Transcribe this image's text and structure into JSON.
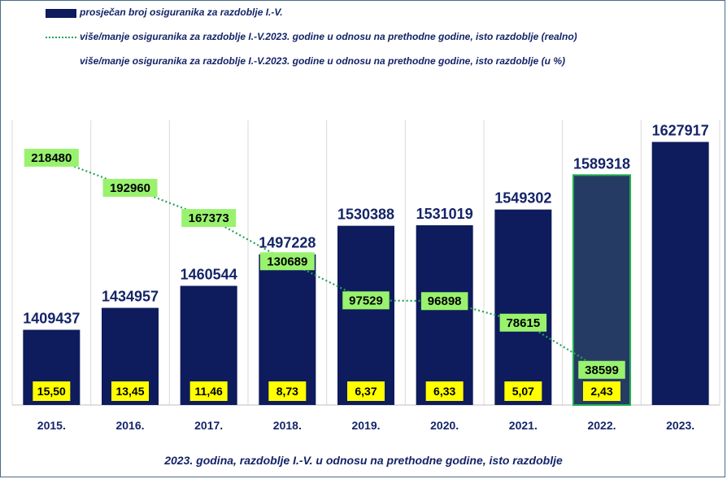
{
  "legend": {
    "bars_label": "prosječan broj osiguranika za razdoblje I.-V.",
    "line_label": "više/manje osiguranika za razdoblje I.-V.2023. godine u odnosu na prethodne godine, isto razdoblje (realno)",
    "percent_label": "više/manje osiguranika za razdoblje I.-V.2023. godine u odnosu na prethodne godine, isto razdoblje (u %)"
  },
  "caption": "2023. godina, razdoblje I.-V. u odnosu na prethodne godine, isto razdoblje",
  "colors": {
    "bar": "#0e1b5c",
    "bar_highlight": "#253b63",
    "highlight_border": "#1fae4e",
    "line": "#23a35a",
    "line_label_bg": "#99f26e",
    "percent_label_bg": "#ffff00",
    "text": "#142468"
  },
  "chart_data": {
    "type": "bar",
    "categories": [
      "2015.",
      "2016.",
      "2017.",
      "2018.",
      "2019.",
      "2020.",
      "2021.",
      "2022.",
      "2023."
    ],
    "series": [
      {
        "name": "prosječan broj osiguranika za razdoblje I.-V.",
        "type": "bar",
        "values": [
          1409437,
          1434957,
          1460544,
          1497228,
          1530388,
          1531019,
          1549302,
          1589318,
          1627917
        ],
        "labels": [
          "1409437",
          "1434957",
          "1460544",
          "1497228",
          "1530388",
          "1531019",
          "1549302",
          "1589318",
          "1627917"
        ]
      },
      {
        "name": "više/manje osiguranika za razdoblje I.-V.2023. godine u odnosu na prethodne godine, isto razdoblje (realno)",
        "type": "line",
        "style": "dotted",
        "values": [
          218480,
          192960,
          167373,
          130689,
          97529,
          96898,
          78615,
          38599,
          null
        ],
        "labels": [
          "218480",
          "192960",
          "167373",
          "130689",
          "97529",
          "96898",
          "78615",
          "38599",
          ""
        ]
      },
      {
        "name": "više/manje osiguranika za razdoblje I.-V.2023. godine u odnosu na prethodne godine, isto razdoblje (u %)",
        "type": "label",
        "values": [
          15.5,
          13.45,
          11.46,
          8.73,
          6.37,
          6.33,
          5.07,
          2.43,
          null
        ],
        "labels": [
          "15,50",
          "13,45",
          "11,46",
          "8,73",
          "6,37",
          "6,33",
          "5,07",
          "2,43",
          ""
        ]
      }
    ],
    "highlight_category": "2022.",
    "grid": "vertical"
  }
}
